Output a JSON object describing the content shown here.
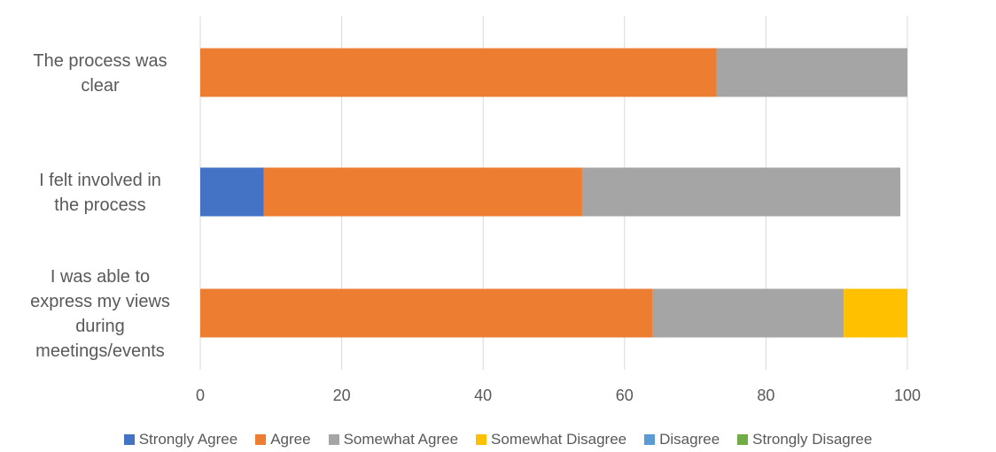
{
  "chart_data": {
    "type": "bar",
    "orientation": "horizontal",
    "stacked": true,
    "title": "",
    "xlabel": "",
    "ylabel": "",
    "xlim": [
      0,
      100
    ],
    "x_ticks": [
      "0",
      "20",
      "40",
      "60",
      "80",
      "100"
    ],
    "grid": "vertical gridlines",
    "legend_position": "bottom",
    "categories": [
      [
        "The process was",
        "clear"
      ],
      [
        "I felt involved in",
        "the process"
      ],
      [
        "I was able to",
        "express my views",
        "during",
        "meetings/events"
      ]
    ],
    "series": [
      {
        "name": "Strongly Agree",
        "color": "#4472C4",
        "values": [
          0,
          9,
          0
        ]
      },
      {
        "name": "Agree",
        "color": "#ED7D31",
        "values": [
          73,
          45,
          64
        ]
      },
      {
        "name": "Somewhat Agree",
        "color": "#A5A5A5",
        "values": [
          27,
          45,
          27
        ]
      },
      {
        "name": "Somewhat Disagree",
        "color": "#FFC000",
        "values": [
          0,
          0,
          9
        ]
      },
      {
        "name": "Disagree",
        "color": "#5B9BD5",
        "values": [
          0,
          0,
          0
        ]
      },
      {
        "name": "Strongly Disagree",
        "color": "#70AD47",
        "values": [
          0,
          0,
          0
        ]
      }
    ]
  }
}
